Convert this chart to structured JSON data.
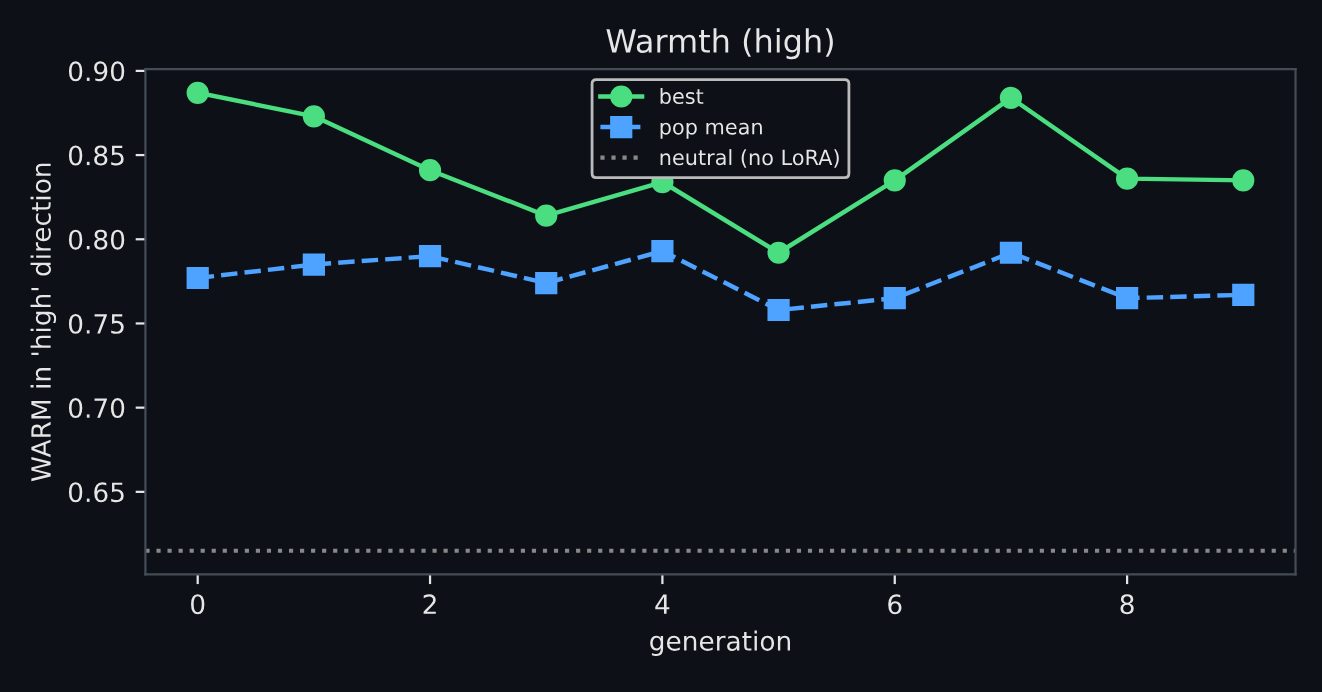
{
  "chart_data": {
    "type": "line",
    "title": "Warmth (high)",
    "xlabel": "generation",
    "ylabel": "WARM in 'high' direction",
    "x": [
      0,
      1,
      2,
      3,
      4,
      5,
      6,
      7,
      8,
      9
    ],
    "series": [
      {
        "name": "best",
        "color": "#4ade80",
        "values": [
          0.887,
          0.873,
          0.841,
          0.814,
          0.834,
          0.792,
          0.835,
          0.884,
          0.836,
          0.835
        ],
        "marker": "circle",
        "line_style": "solid"
      },
      {
        "name": "pop mean",
        "color": "#4da3ff",
        "values": [
          0.777,
          0.785,
          0.79,
          0.774,
          0.793,
          0.758,
          0.765,
          0.792,
          0.765,
          0.767
        ],
        "marker": "square",
        "line_style": "dashed"
      }
    ],
    "ref_lines": [
      {
        "axis": "y",
        "value": 0.615,
        "label": "neutral (no LoRA)",
        "color": "#888888",
        "line_style": "dotted"
      }
    ],
    "xlim": [
      -0.45,
      9.45
    ],
    "ylim": [
      0.601,
      0.901
    ],
    "xticks": [
      0,
      2,
      4,
      6,
      8
    ],
    "yticks": [
      0.65,
      {
        "value": 0.7,
        "label": "0.70"
      },
      0.75,
      {
        "value": 0.8,
        "label": "0.80"
      },
      0.85,
      {
        "value": 0.9,
        "label": "0.90"
      }
    ],
    "grid": false,
    "legend": "top center"
  }
}
